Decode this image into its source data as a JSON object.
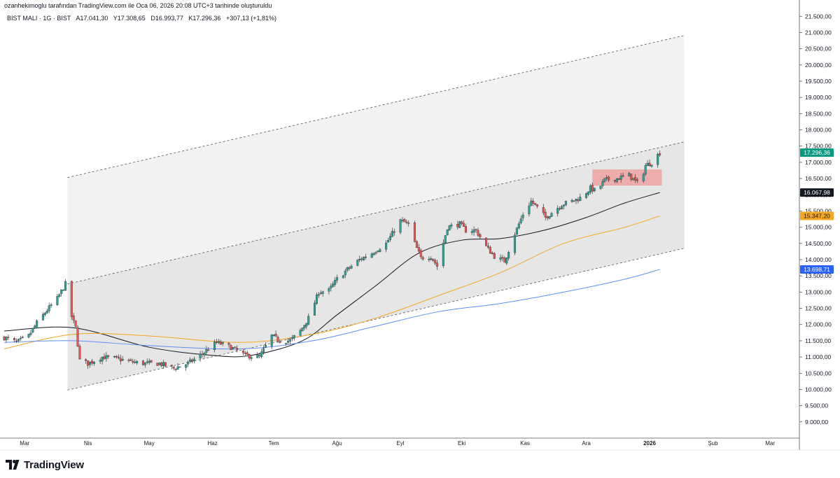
{
  "header": {
    "credit": "ozanhekimoglu tarafından TradingView.com ile Oca 06, 2026 20:08 UTC+3 tarihinde oluşturuldu",
    "symbol": "BIST MALI · 1G · BIST",
    "open": "A17.041,30",
    "high": "Y17.308,65",
    "low": "D16.993,77",
    "close": "K17.296,36",
    "change": "+307,13 (+1,81%)"
  },
  "footer": {
    "brand": "TradingView",
    "logo_icon": "tradingview-logo-icon"
  },
  "colors": {
    "up": "#26a69a",
    "down": "#ef5350",
    "ma_short": "#131722",
    "ma_mid": "#f5a623",
    "ma_long": "#5b8ff9",
    "channel_fill": "#e6e6e6",
    "highlight": "#ef9a9a",
    "price_tag": "#089981"
  },
  "chart_data": {
    "type": "candlestick",
    "ylim": [
      8500,
      21700
    ],
    "y_ticks": [
      "9.000,00",
      "9.500,00",
      "10.000,00",
      "10.500,00",
      "11.000,00",
      "11.500,00",
      "12.000,00",
      "12.500,00",
      "13.000,00",
      "13.500,00",
      "14.000,00",
      "14.500,00",
      "15.000,00",
      "15.500,00",
      "16.000,00",
      "16.500,00",
      "17.000,00",
      "17.500,00",
      "18.000,00",
      "18.500,00",
      "19.000,00",
      "19.500,00",
      "20.000,00",
      "20.500,00",
      "21.000,00",
      "21.500,00"
    ],
    "x_ticks": [
      {
        "label": "Mar",
        "date": "2025-03-01"
      },
      {
        "label": "Nis",
        "date": "2025-04-01"
      },
      {
        "label": "May",
        "date": "2025-05-01"
      },
      {
        "label": "Haz",
        "date": "2025-06-01"
      },
      {
        "label": "Tem",
        "date": "2025-07-01"
      },
      {
        "label": "Ağu",
        "date": "2025-08-01"
      },
      {
        "label": "Eyl",
        "date": "2025-09-01"
      },
      {
        "label": "Eki",
        "date": "2025-10-01"
      },
      {
        "label": "Kas",
        "date": "2025-11-01"
      },
      {
        "label": "Ara",
        "date": "2025-12-01"
      },
      {
        "label": "2026",
        "date": "2026-01-01",
        "bold": true
      },
      {
        "label": "Şub",
        "date": "2026-02-01"
      },
      {
        "label": "Mar",
        "date": "2026-03-01"
      }
    ],
    "x_range": [
      "2025-02-19",
      "2026-03-15"
    ],
    "price_labels": [
      {
        "value": 17296.36,
        "text": "17.296,36",
        "bg": "#089981",
        "fg": "#ffffff"
      },
      {
        "value": 16067.98,
        "text": "16.067,98",
        "bg": "#131722",
        "fg": "#ffffff"
      },
      {
        "value": 15347.2,
        "text": "15.347,20",
        "bg": "#f5a623",
        "fg": "#131722"
      },
      {
        "value": 13698.71,
        "text": "13.698,71",
        "bg": "#2962ff",
        "fg": "#ffffff"
      }
    ],
    "close_path": [
      [
        "2025-02-19",
        11600
      ],
      [
        "2025-02-25",
        11450
      ],
      [
        "2025-03-03",
        11650
      ],
      [
        "2025-03-07",
        12050
      ],
      [
        "2025-03-12",
        12450
      ],
      [
        "2025-03-17",
        12800
      ],
      [
        "2025-03-21",
        13250
      ],
      [
        "2025-03-24",
        12250
      ],
      [
        "2025-03-26",
        11900
      ],
      [
        "2025-03-28",
        10900
      ],
      [
        "2025-04-01",
        10800
      ],
      [
        "2025-04-08",
        11000
      ],
      [
        "2025-04-15",
        10950
      ],
      [
        "2025-04-22",
        10850
      ],
      [
        "2025-04-29",
        10800
      ],
      [
        "2025-05-06",
        10800
      ],
      [
        "2025-05-13",
        10650
      ],
      [
        "2025-05-20",
        10800
      ],
      [
        "2025-05-27",
        11100
      ],
      [
        "2025-06-03",
        11450
      ],
      [
        "2025-06-10",
        11300
      ],
      [
        "2025-06-17",
        11050
      ],
      [
        "2025-06-24",
        11000
      ],
      [
        "2025-06-30",
        11650
      ],
      [
        "2025-07-04",
        11500
      ],
      [
        "2025-07-09",
        11500
      ],
      [
        "2025-07-14",
        11800
      ],
      [
        "2025-07-18",
        12200
      ],
      [
        "2025-07-23",
        13000
      ],
      [
        "2025-07-28",
        13050
      ],
      [
        "2025-08-01",
        13400
      ],
      [
        "2025-08-06",
        13700
      ],
      [
        "2025-08-12",
        14000
      ],
      [
        "2025-08-18",
        14200
      ],
      [
        "2025-08-25",
        14500
      ],
      [
        "2025-09-01",
        15200
      ],
      [
        "2025-09-05",
        15100
      ],
      [
        "2025-09-08",
        14500
      ],
      [
        "2025-09-11",
        14050
      ],
      [
        "2025-09-16",
        14100
      ],
      [
        "2025-09-19",
        13800
      ],
      [
        "2025-09-24",
        15000
      ],
      [
        "2025-09-30",
        15100
      ],
      [
        "2025-10-03",
        14900
      ],
      [
        "2025-10-08",
        14900
      ],
      [
        "2025-10-13",
        14400
      ],
      [
        "2025-10-17",
        14100
      ],
      [
        "2025-10-22",
        13950
      ],
      [
        "2025-10-27",
        14800
      ],
      [
        "2025-10-31",
        15400
      ],
      [
        "2025-11-04",
        15800
      ],
      [
        "2025-11-07",
        15600
      ],
      [
        "2025-11-11",
        15300
      ],
      [
        "2025-11-14",
        15450
      ],
      [
        "2025-11-19",
        15700
      ],
      [
        "2025-11-24",
        15800
      ],
      [
        "2025-11-28",
        15900
      ],
      [
        "2025-12-03",
        16200
      ],
      [
        "2025-12-06",
        16100
      ],
      [
        "2025-12-10",
        16450
      ],
      [
        "2025-12-16",
        16500
      ],
      [
        "2025-12-22",
        16600
      ],
      [
        "2025-12-27",
        16300
      ],
      [
        "2025-12-30",
        16900
      ],
      [
        "2026-01-02",
        17000
      ],
      [
        "2026-01-06",
        17296
      ]
    ],
    "moving_averages": [
      {
        "name": "MA short",
        "color": "#131722",
        "points": [
          [
            "2025-02-19",
            11800
          ],
          [
            "2025-03-25",
            11900
          ],
          [
            "2025-05-01",
            11300
          ],
          [
            "2025-06-01",
            11050
          ],
          [
            "2025-06-20",
            11050
          ],
          [
            "2025-07-15",
            11500
          ],
          [
            "2025-08-01",
            12300
          ],
          [
            "2025-08-20",
            13200
          ],
          [
            "2025-09-10",
            14200
          ],
          [
            "2025-10-01",
            14600
          ],
          [
            "2025-10-20",
            14650
          ],
          [
            "2025-11-10",
            14900
          ],
          [
            "2025-12-01",
            15300
          ],
          [
            "2025-12-20",
            15750
          ],
          [
            "2026-01-06",
            16068
          ]
        ]
      },
      {
        "name": "MA mid",
        "color": "#f5a623",
        "points": [
          [
            "2025-02-19",
            11250
          ],
          [
            "2025-03-25",
            11700
          ],
          [
            "2025-05-01",
            11650
          ],
          [
            "2025-06-15",
            11450
          ],
          [
            "2025-07-20",
            11700
          ],
          [
            "2025-08-20",
            12200
          ],
          [
            "2025-09-20",
            12900
          ],
          [
            "2025-10-20",
            13600
          ],
          [
            "2025-11-20",
            14500
          ],
          [
            "2025-12-20",
            15000
          ],
          [
            "2026-01-06",
            15347
          ]
        ]
      },
      {
        "name": "MA long",
        "color": "#5b8ff9",
        "points": [
          [
            "2025-02-19",
            11450
          ],
          [
            "2025-03-25",
            11500
          ],
          [
            "2025-05-01",
            11350
          ],
          [
            "2025-06-15",
            11250
          ],
          [
            "2025-07-20",
            11500
          ],
          [
            "2025-08-20",
            11950
          ],
          [
            "2025-09-20",
            12400
          ],
          [
            "2025-10-20",
            12650
          ],
          [
            "2025-11-20",
            13000
          ],
          [
            "2025-12-20",
            13400
          ],
          [
            "2026-01-06",
            13699
          ]
        ]
      }
    ],
    "channel": {
      "start": "2025-03-22",
      "end": "2026-01-18",
      "start_values": [
        9980,
        13250,
        16530
      ],
      "end_values": [
        14350,
        17630,
        20910
      ]
    },
    "highlight_box": {
      "x0": "2025-12-04",
      "x1": "2026-01-07",
      "y0": 16280,
      "y1": 16780
    }
  }
}
